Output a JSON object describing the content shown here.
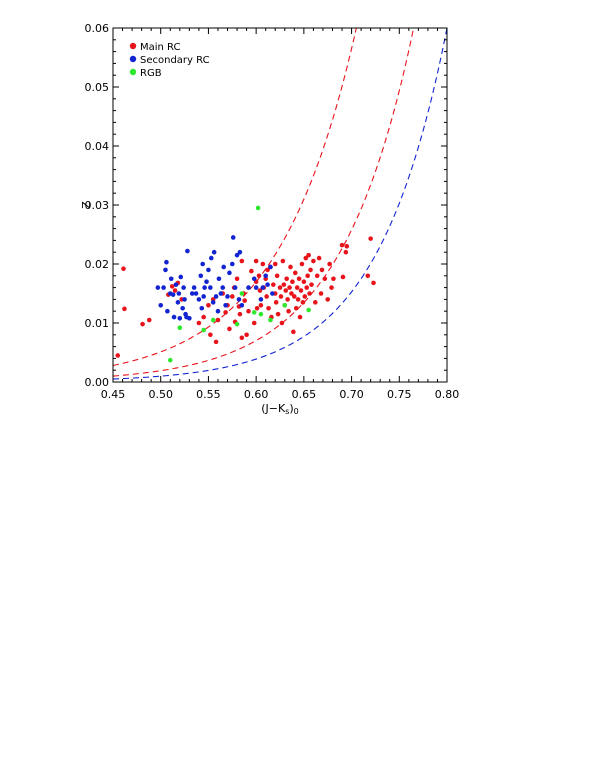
{
  "chart_data": {
    "type": "scatter",
    "title": "",
    "xlabel": "(J−K",
    "xlabel_sub1": "s",
    "xlabel_close": ")",
    "xlabel_sub2": "0",
    "ylabel": "Z",
    "xlim": [
      0.45,
      0.8
    ],
    "ylim": [
      0.0,
      0.06
    ],
    "xticks": [
      "0.45",
      "0.50",
      "0.55",
      "0.60",
      "0.65",
      "0.70",
      "0.75",
      "0.80"
    ],
    "yticks": [
      "0.00",
      "0.01",
      "0.02",
      "0.03",
      "0.04",
      "0.05",
      "0.06"
    ],
    "legend_position": "top-left",
    "grid": false,
    "series": [
      {
        "name": "Main RC",
        "color": "#e8141c",
        "points": [
          [
            0.455,
            0.0045
          ],
          [
            0.461,
            0.0192
          ],
          [
            0.462,
            0.0124
          ],
          [
            0.481,
            0.0098
          ],
          [
            0.488,
            0.0105
          ],
          [
            0.508,
            0.0148
          ],
          [
            0.512,
            0.0162
          ],
          [
            0.515,
            0.0155
          ],
          [
            0.518,
            0.0168
          ],
          [
            0.522,
            0.014
          ],
          [
            0.54,
            0.01
          ],
          [
            0.545,
            0.011
          ],
          [
            0.55,
            0.013
          ],
          [
            0.552,
            0.008
          ],
          [
            0.555,
            0.014
          ],
          [
            0.558,
            0.0068
          ],
          [
            0.56,
            0.0105
          ],
          [
            0.565,
            0.015
          ],
          [
            0.568,
            0.0118
          ],
          [
            0.57,
            0.013
          ],
          [
            0.572,
            0.009
          ],
          [
            0.575,
            0.0145
          ],
          [
            0.577,
            0.016
          ],
          [
            0.578,
            0.0102
          ],
          [
            0.58,
            0.0175
          ],
          [
            0.582,
            0.0128
          ],
          [
            0.583,
            0.0115
          ],
          [
            0.585,
            0.0075
          ],
          [
            0.585,
            0.0205
          ],
          [
            0.587,
            0.015
          ],
          [
            0.588,
            0.0138
          ],
          [
            0.59,
            0.008
          ],
          [
            0.592,
            0.012
          ],
          [
            0.595,
            0.0188
          ],
          [
            0.598,
            0.01
          ],
          [
            0.6,
            0.0205
          ],
          [
            0.6,
            0.017
          ],
          [
            0.601,
            0.0125
          ],
          [
            0.603,
            0.018
          ],
          [
            0.604,
            0.0155
          ],
          [
            0.605,
            0.013
          ],
          [
            0.607,
            0.02
          ],
          [
            0.608,
            0.016
          ],
          [
            0.61,
            0.0175
          ],
          [
            0.611,
            0.0145
          ],
          [
            0.612,
            0.019
          ],
          [
            0.613,
            0.0125
          ],
          [
            0.615,
            0.0195
          ],
          [
            0.616,
            0.011
          ],
          [
            0.618,
            0.0165
          ],
          [
            0.62,
            0.015
          ],
          [
            0.62,
            0.02
          ],
          [
            0.621,
            0.0135
          ],
          [
            0.622,
            0.018
          ],
          [
            0.623,
            0.0115
          ],
          [
            0.625,
            0.016
          ],
          [
            0.626,
            0.0145
          ],
          [
            0.627,
            0.01
          ],
          [
            0.628,
            0.0205
          ],
          [
            0.629,
            0.0165
          ],
          [
            0.63,
            0.013
          ],
          [
            0.631,
            0.0155
          ],
          [
            0.632,
            0.0175
          ],
          [
            0.633,
            0.014
          ],
          [
            0.634,
            0.012
          ],
          [
            0.635,
            0.016
          ],
          [
            0.636,
            0.0195
          ],
          [
            0.637,
            0.015
          ],
          [
            0.638,
            0.017
          ],
          [
            0.639,
            0.0085
          ],
          [
            0.64,
            0.0145
          ],
          [
            0.641,
            0.0185
          ],
          [
            0.642,
            0.0125
          ],
          [
            0.643,
            0.016
          ],
          [
            0.644,
            0.014
          ],
          [
            0.645,
            0.0175
          ],
          [
            0.646,
            0.011
          ],
          [
            0.647,
            0.0155
          ],
          [
            0.648,
            0.02
          ],
          [
            0.649,
            0.0135
          ],
          [
            0.65,
            0.017
          ],
          [
            0.651,
            0.0145
          ],
          [
            0.652,
            0.021
          ],
          [
            0.653,
            0.016
          ],
          [
            0.654,
            0.018
          ],
          [
            0.655,
            0.0215
          ],
          [
            0.656,
            0.015
          ],
          [
            0.657,
            0.019
          ],
          [
            0.658,
            0.0165
          ],
          [
            0.66,
            0.0205
          ],
          [
            0.662,
            0.0135
          ],
          [
            0.664,
            0.018
          ],
          [
            0.666,
            0.021
          ],
          [
            0.668,
            0.015
          ],
          [
            0.669,
            0.019
          ],
          [
            0.672,
            0.0175
          ],
          [
            0.675,
            0.014
          ],
          [
            0.677,
            0.02
          ],
          [
            0.679,
            0.016
          ],
          [
            0.681,
            0.0175
          ],
          [
            0.69,
            0.0232
          ],
          [
            0.691,
            0.0178
          ],
          [
            0.694,
            0.022
          ],
          [
            0.695,
            0.023
          ],
          [
            0.717,
            0.018
          ],
          [
            0.72,
            0.0243
          ],
          [
            0.723,
            0.0168
          ]
        ]
      },
      {
        "name": "Secondary RC",
        "color": "#1224d2",
        "points": [
          [
            0.497,
            0.016
          ],
          [
            0.5,
            0.013
          ],
          [
            0.503,
            0.016
          ],
          [
            0.505,
            0.019
          ],
          [
            0.506,
            0.0203
          ],
          [
            0.507,
            0.012
          ],
          [
            0.51,
            0.015
          ],
          [
            0.511,
            0.0175
          ],
          [
            0.513,
            0.0148
          ],
          [
            0.514,
            0.011
          ],
          [
            0.516,
            0.0165
          ],
          [
            0.518,
            0.0135
          ],
          [
            0.519,
            0.015
          ],
          [
            0.52,
            0.0108
          ],
          [
            0.521,
            0.0178
          ],
          [
            0.523,
            0.0125
          ],
          [
            0.524,
            0.016
          ],
          [
            0.525,
            0.014
          ],
          [
            0.526,
            0.0115
          ],
          [
            0.527,
            0.011
          ],
          [
            0.528,
            0.0222
          ],
          [
            0.53,
            0.0108
          ],
          [
            0.533,
            0.015
          ],
          [
            0.535,
            0.016
          ],
          [
            0.537,
            0.015
          ],
          [
            0.54,
            0.014
          ],
          [
            0.542,
            0.018
          ],
          [
            0.543,
            0.0125
          ],
          [
            0.544,
            0.02
          ],
          [
            0.545,
            0.0145
          ],
          [
            0.546,
            0.016
          ],
          [
            0.548,
            0.017
          ],
          [
            0.55,
            0.019
          ],
          [
            0.552,
            0.016
          ],
          [
            0.553,
            0.021
          ],
          [
            0.555,
            0.0135
          ],
          [
            0.556,
            0.022
          ],
          [
            0.558,
            0.0145
          ],
          [
            0.56,
            0.012
          ],
          [
            0.561,
            0.0175
          ],
          [
            0.563,
            0.015
          ],
          [
            0.565,
            0.016
          ],
          [
            0.566,
            0.0195
          ],
          [
            0.568,
            0.013
          ],
          [
            0.57,
            0.0145
          ],
          [
            0.572,
            0.0185
          ],
          [
            0.575,
            0.02
          ],
          [
            0.576,
            0.0245
          ],
          [
            0.578,
            0.016
          ],
          [
            0.58,
            0.0215
          ],
          [
            0.582,
            0.014
          ],
          [
            0.583,
            0.022
          ],
          [
            0.585,
            0.013
          ],
          [
            0.592,
            0.016
          ],
          [
            0.598,
            0.0175
          ],
          [
            0.6,
            0.016
          ],
          [
            0.605,
            0.014
          ],
          [
            0.607,
            0.016
          ],
          [
            0.61,
            0.018
          ],
          [
            0.612,
            0.0165
          ],
          [
            0.615,
            0.0195
          ],
          [
            0.617,
            0.015
          ]
        ]
      },
      {
        "name": "RGB",
        "color": "#2ee82e",
        "points": [
          [
            0.51,
            0.0037
          ],
          [
            0.52,
            0.0092
          ],
          [
            0.545,
            0.0088
          ],
          [
            0.555,
            0.0105
          ],
          [
            0.58,
            0.0098
          ],
          [
            0.585,
            0.015
          ],
          [
            0.598,
            0.0118
          ],
          [
            0.602,
            0.0295
          ],
          [
            0.605,
            0.0115
          ],
          [
            0.615,
            0.0105
          ],
          [
            0.63,
            0.013
          ],
          [
            0.655,
            0.0122
          ]
        ]
      }
    ],
    "curves": [
      {
        "color": "#e8141c",
        "style": "dashed",
        "x_end": 0.705
      },
      {
        "color": "#e8141c",
        "style": "dashed",
        "x_end": 0.765
      },
      {
        "color": "#1224d2",
        "style": "dashed",
        "x_end": 0.8
      }
    ]
  }
}
